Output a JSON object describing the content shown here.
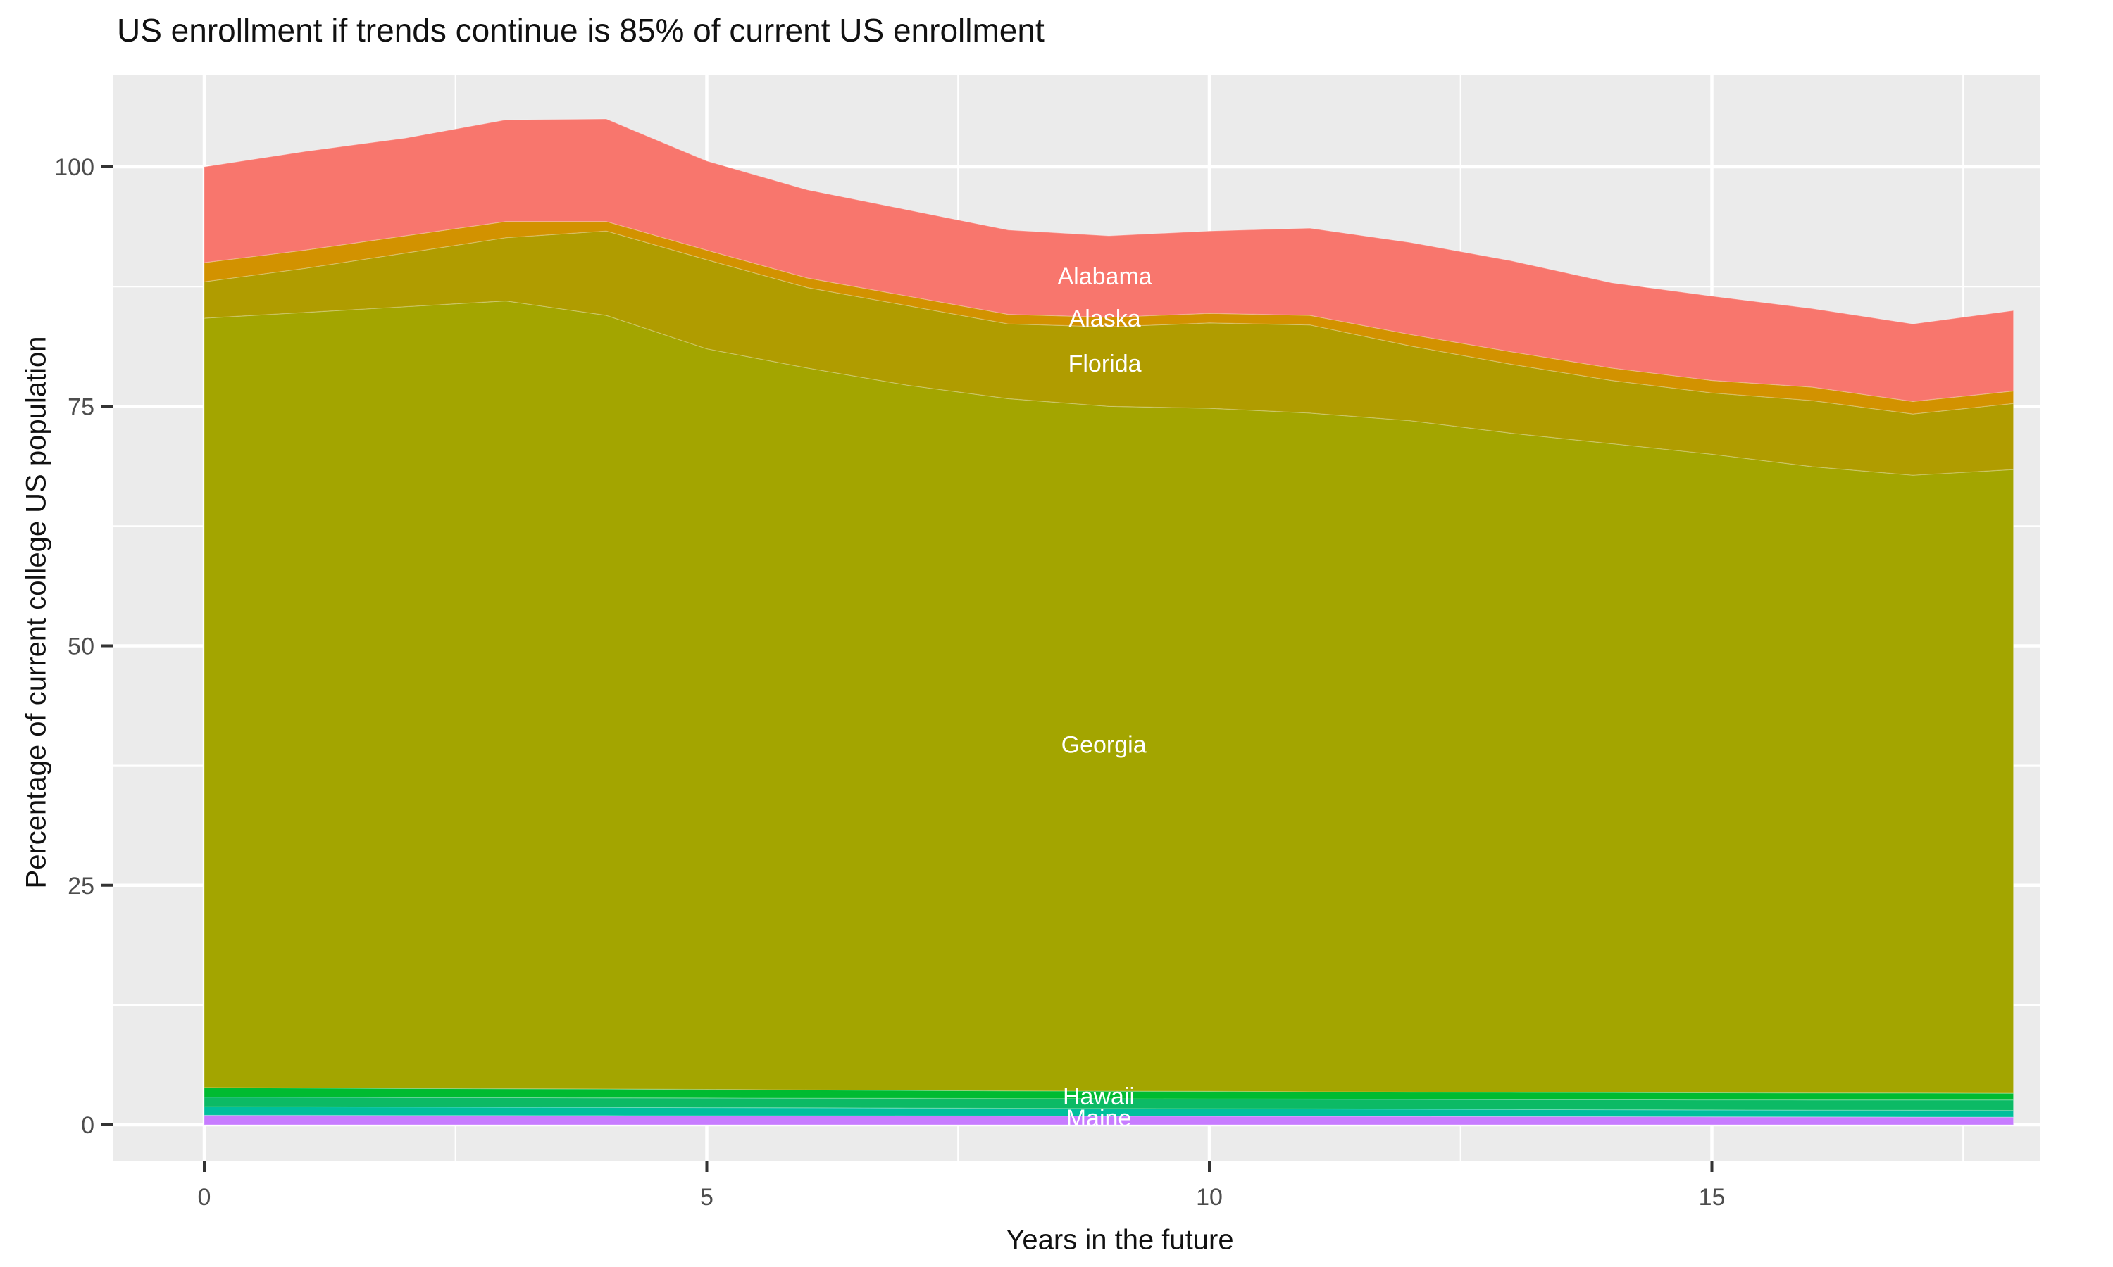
{
  "title": "US enrollment if trends continue is 85% of current US enrollment",
  "axes": {
    "x": {
      "label": "Years in the future",
      "major_ticks": [
        0,
        5,
        10,
        15
      ],
      "minor_ticks": [
        2.5,
        7.5,
        12.5,
        17.5
      ],
      "range": [
        -0.91,
        18.26
      ]
    },
    "y": {
      "label": "Percentage of current college US population",
      "major_ticks": [
        0,
        25,
        50,
        75,
        100
      ],
      "minor_ticks": [
        12.5,
        37.5,
        62.5,
        87.5
      ],
      "range": [
        -3.7,
        109.6
      ]
    }
  },
  "style": {
    "panel_background": "#EBEBEB",
    "grid_color": "#FFFFFF",
    "tick_text_color": "#4D4D4D",
    "tick_mark_color": "#333333",
    "annotation_color": "#FFFFFF"
  },
  "chart_data": {
    "type": "area",
    "stacked": true,
    "title": "US enrollment if trends continue is 85% of current US enrollment",
    "xlabel": "Years in the future",
    "ylabel": "Percentage of current college US population",
    "xlim": [
      0,
      18
    ],
    "ylim": [
      0,
      105
    ],
    "grid": true,
    "legend": false,
    "x": [
      0,
      1,
      2,
      3,
      4,
      5,
      6,
      7,
      8,
      9,
      10,
      11,
      12,
      13,
      14,
      15,
      16,
      17,
      18
    ],
    "series": [
      {
        "name": "Maine",
        "color": "#C77CFF",
        "cumulative_top": [
          1.0,
          0.99,
          0.98,
          0.97,
          0.96,
          0.95,
          0.94,
          0.93,
          0.92,
          0.91,
          0.9,
          0.89,
          0.88,
          0.86,
          0.85,
          0.84,
          0.82,
          0.81,
          0.8
        ]
      },
      {
        "name": "",
        "color": "#00BF9C",
        "cumulative_top": [
          1.9,
          1.88,
          1.86,
          1.84,
          1.82,
          1.8,
          1.78,
          1.75,
          1.72,
          1.7,
          1.68,
          1.66,
          1.63,
          1.6,
          1.58,
          1.55,
          1.53,
          1.51,
          1.5
        ]
      },
      {
        "name": "",
        "color": "#0CBA65",
        "cumulative_top": [
          2.9,
          2.88,
          2.86,
          2.84,
          2.82,
          2.8,
          2.78,
          2.76,
          2.74,
          2.72,
          2.7,
          2.68,
          2.66,
          2.64,
          2.62,
          2.61,
          2.6,
          2.6,
          2.6
        ]
      },
      {
        "name": "Hawaii",
        "color": "#00BB31",
        "cumulative_top": [
          3.9,
          3.85,
          3.8,
          3.78,
          3.75,
          3.7,
          3.65,
          3.6,
          3.55,
          3.52,
          3.5,
          3.45,
          3.42,
          3.4,
          3.38,
          3.35,
          3.33,
          3.32,
          3.3
        ]
      },
      {
        "name": "Georgia",
        "color": "#A3A500",
        "cumulative_top": [
          84.2,
          84.8,
          85.4,
          86.0,
          84.5,
          81.0,
          79.0,
          77.2,
          75.8,
          75.0,
          74.8,
          74.3,
          73.5,
          72.2,
          71.1,
          70.0,
          68.7,
          67.8,
          68.4
        ]
      },
      {
        "name": "Florida",
        "color": "#B09C00",
        "cumulative_top": [
          88.0,
          89.4,
          91.0,
          92.6,
          93.3,
          90.3,
          87.4,
          85.5,
          83.6,
          83.3,
          83.7,
          83.5,
          81.3,
          79.4,
          77.7,
          76.4,
          75.6,
          74.2,
          75.3
        ]
      },
      {
        "name": "Alaska",
        "color": "#D29200",
        "cumulative_top": [
          90.0,
          91.3,
          92.8,
          94.3,
          94.3,
          91.3,
          88.4,
          86.5,
          84.6,
          84.3,
          84.7,
          84.5,
          82.5,
          80.7,
          79.0,
          77.7,
          77.0,
          75.5,
          76.6
        ]
      },
      {
        "name": "Alabama",
        "color": "#F8766D",
        "cumulative_top": [
          100.0,
          101.6,
          103.0,
          104.9,
          105.0,
          100.6,
          97.6,
          95.5,
          93.4,
          92.8,
          93.3,
          93.6,
          92.1,
          90.2,
          87.9,
          86.5,
          85.2,
          83.6,
          85.0
        ]
      }
    ],
    "annotations": [
      {
        "label": "Alabama",
        "x": 8.96,
        "y": 88.6
      },
      {
        "label": "Alaska",
        "x": 8.96,
        "y": 84.2
      },
      {
        "label": "Florida",
        "x": 8.96,
        "y": 79.5
      },
      {
        "label": "Georgia",
        "x": 8.95,
        "y": 39.7
      },
      {
        "label": "Hawaii",
        "x": 8.9,
        "y": 3.0
      },
      {
        "label": "Maine",
        "x": 8.9,
        "y": 0.75
      }
    ]
  }
}
